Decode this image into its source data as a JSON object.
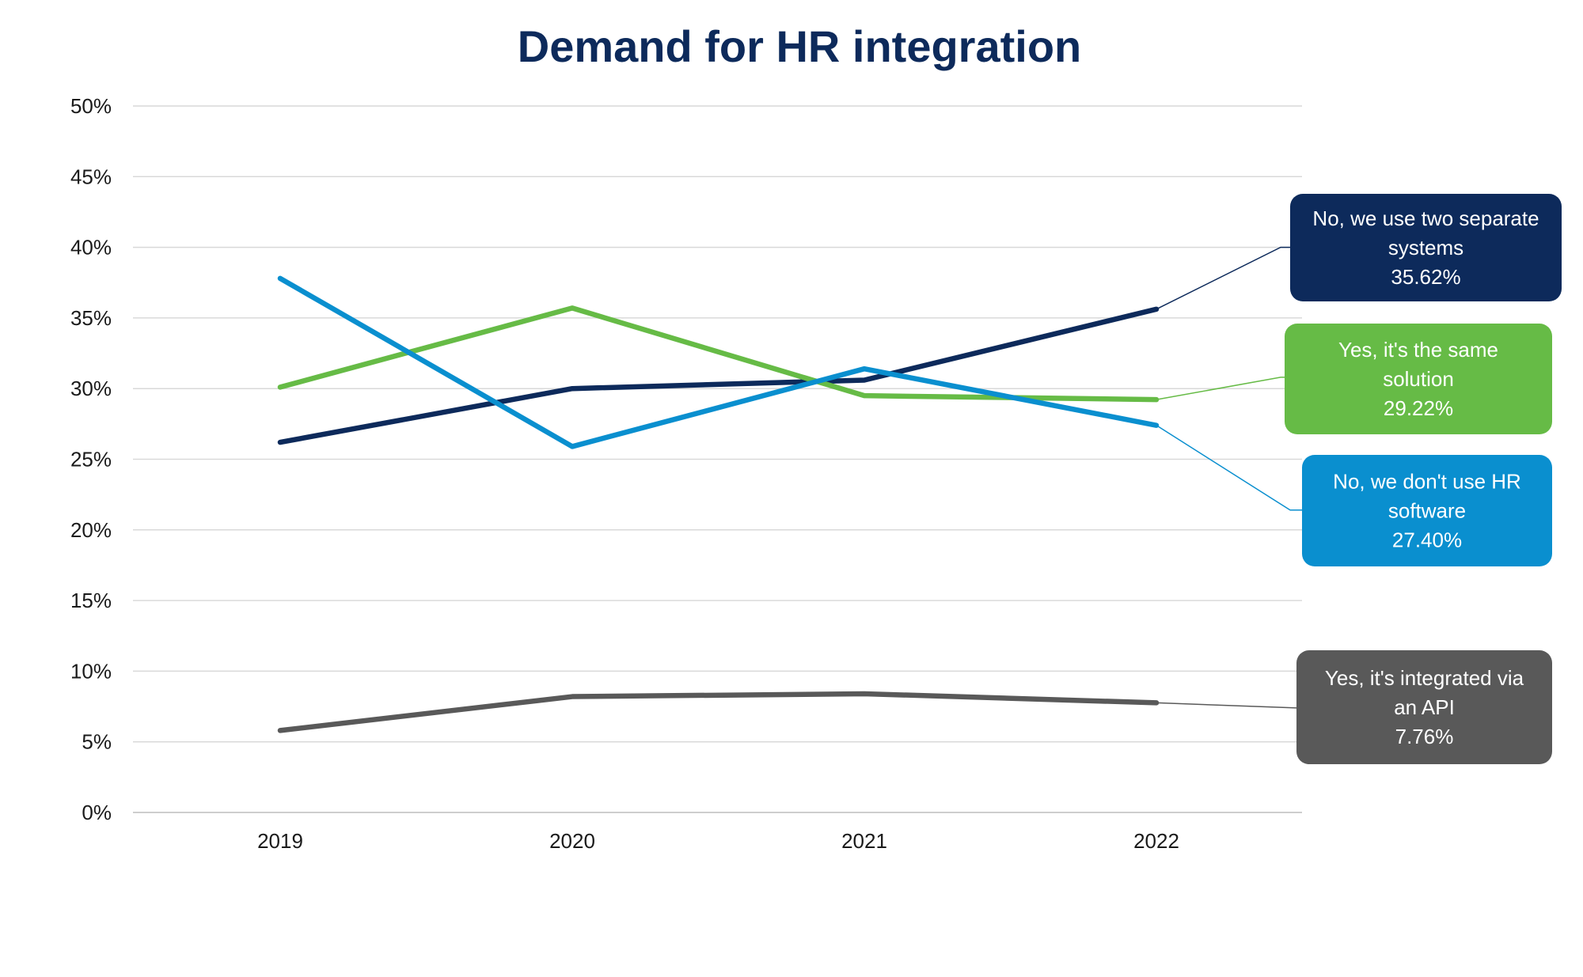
{
  "chart_data": {
    "type": "line",
    "title": "Demand for HR integration",
    "xlabel": "",
    "ylabel": "",
    "categories": [
      "2019",
      "2020",
      "2021",
      "2022"
    ],
    "y_ticks": [
      "0%",
      "5%",
      "10%",
      "15%",
      "20%",
      "25%",
      "30%",
      "35%",
      "40%",
      "45%",
      "50%"
    ],
    "ylim": [
      0,
      50
    ],
    "grid": true,
    "legend": "right-callouts",
    "series": [
      {
        "name": "No, we use two separate systems",
        "values": [
          26.2,
          30.0,
          30.6,
          35.62
        ],
        "color": "#0d2a5b",
        "label_lines": [
          "No, we use two separate",
          "systems",
          "35.62%"
        ],
        "label_anchor_value": 40.0
      },
      {
        "name": "Yes, it's the same solution",
        "values": [
          30.1,
          35.7,
          29.5,
          29.22
        ],
        "color": "#66bb46",
        "label_lines": [
          "Yes, it's the same",
          "solution",
          "29.22%"
        ],
        "label_anchor_value": 30.8
      },
      {
        "name": "No, we don't use HR software",
        "values": [
          37.8,
          25.9,
          31.4,
          27.4
        ],
        "color": "#0a8fcf",
        "label_lines": [
          "No, we don't use HR",
          "software",
          "27.40%"
        ],
        "label_anchor_value": 21.4
      },
      {
        "name": "Yes, it's integrated via an API",
        "values": [
          5.8,
          8.2,
          8.4,
          7.76
        ],
        "color": "#595959",
        "label_lines": [
          "Yes, it's integrated via",
          "an API",
          "7.76%"
        ],
        "label_anchor_value": 7.4
      }
    ]
  }
}
